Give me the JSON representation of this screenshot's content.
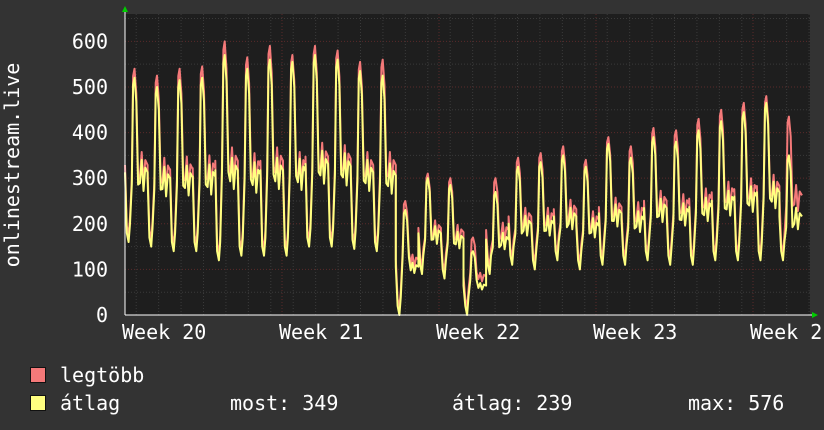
{
  "chart_data": {
    "type": "line",
    "title": "",
    "ylabel": "onlinestream.live",
    "xlabel": "",
    "x_tick_labels": [
      "Week 20",
      "Week 21",
      "Week 22",
      "Week 23",
      "Week 2"
    ],
    "y_ticks": [
      0,
      100,
      200,
      300,
      400,
      500,
      600
    ],
    "ylim": [
      0,
      660
    ],
    "grid": true,
    "peaks": {
      "max": [
        540,
        525,
        540,
        545,
        600,
        565,
        590,
        570,
        590,
        580,
        555,
        560,
        250,
        310,
        300,
        170,
        300,
        345,
        355,
        370,
        340,
        390,
        370,
        410,
        405,
        430,
        450,
        465,
        480,
        435
      ],
      "avg": [
        520,
        500,
        515,
        520,
        570,
        540,
        560,
        555,
        570,
        560,
        535,
        525,
        230,
        300,
        285,
        140,
        270,
        325,
        335,
        350,
        325,
        375,
        345,
        390,
        380,
        405,
        425,
        445,
        465,
        350
      ]
    },
    "daily_min": [
      160,
      150,
      140,
      140,
      120,
      130,
      130,
      130,
      150,
      150,
      145,
      140,
      0,
      90,
      80,
      0,
      90,
      110,
      100,
      120,
      100,
      110,
      110,
      120,
      110,
      110,
      120,
      120,
      120,
      120
    ],
    "series": [
      {
        "name": "legtöbb",
        "color": "#F47979"
      },
      {
        "name": "átlag",
        "color": "#FFFF80"
      }
    ],
    "legend_position": "bottom"
  },
  "legend": {
    "items": [
      {
        "label": "legtöbb",
        "color": "#F47979"
      },
      {
        "label": "átlag",
        "color": "#FFFF80"
      }
    ],
    "stats": {
      "now": "most: 349",
      "avg": "átlag: 239",
      "max": "max: 576"
    }
  }
}
